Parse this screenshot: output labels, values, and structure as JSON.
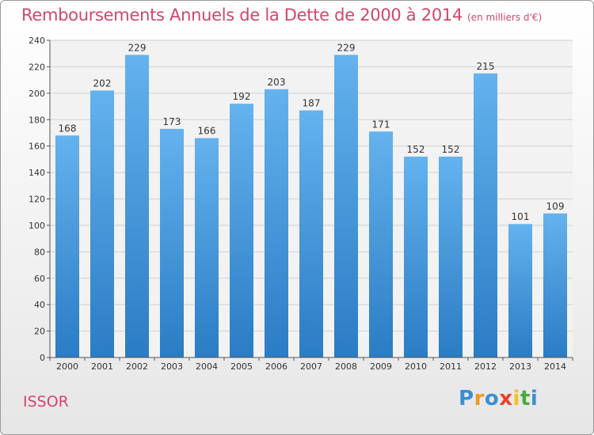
{
  "commune": "ISSOR",
  "brand": {
    "letters": [
      {
        "ch": "P",
        "color": "#3a8fd6"
      },
      {
        "ch": "r",
        "color": "#f19a1e"
      },
      {
        "ch": "o",
        "color": "#3a8fd6"
      },
      {
        "ch": "x",
        "color": "#e8432e"
      },
      {
        "ch": "i",
        "color": "#f4c21f"
      },
      {
        "ch": "t",
        "color": "#48ab3c"
      },
      {
        "ch": "i",
        "color": "#3a8fd6"
      }
    ]
  },
  "colors": {
    "accent": "#d2466a",
    "bar_top": "#64b2ee",
    "bar_bottom": "#2a7cc4",
    "grid": "#d0d0d0"
  },
  "chart_data": {
    "type": "bar",
    "title": "Remboursements Annuels de la Dette de 2000 à 2014",
    "subtitle": "(en milliers d'€)",
    "categories": [
      "2000",
      "2001",
      "2002",
      "2003",
      "2004",
      "2005",
      "2006",
      "2007",
      "2008",
      "2009",
      "2010",
      "2011",
      "2012",
      "2013",
      "2014"
    ],
    "values": [
      168,
      202,
      229,
      173,
      166,
      192,
      203,
      187,
      229,
      171,
      152,
      152,
      215,
      101,
      109
    ],
    "ylim": [
      0,
      240
    ],
    "yticks": [
      0,
      20,
      40,
      60,
      80,
      100,
      120,
      140,
      160,
      180,
      200,
      220,
      240
    ],
    "grid": true,
    "legend": "none"
  }
}
